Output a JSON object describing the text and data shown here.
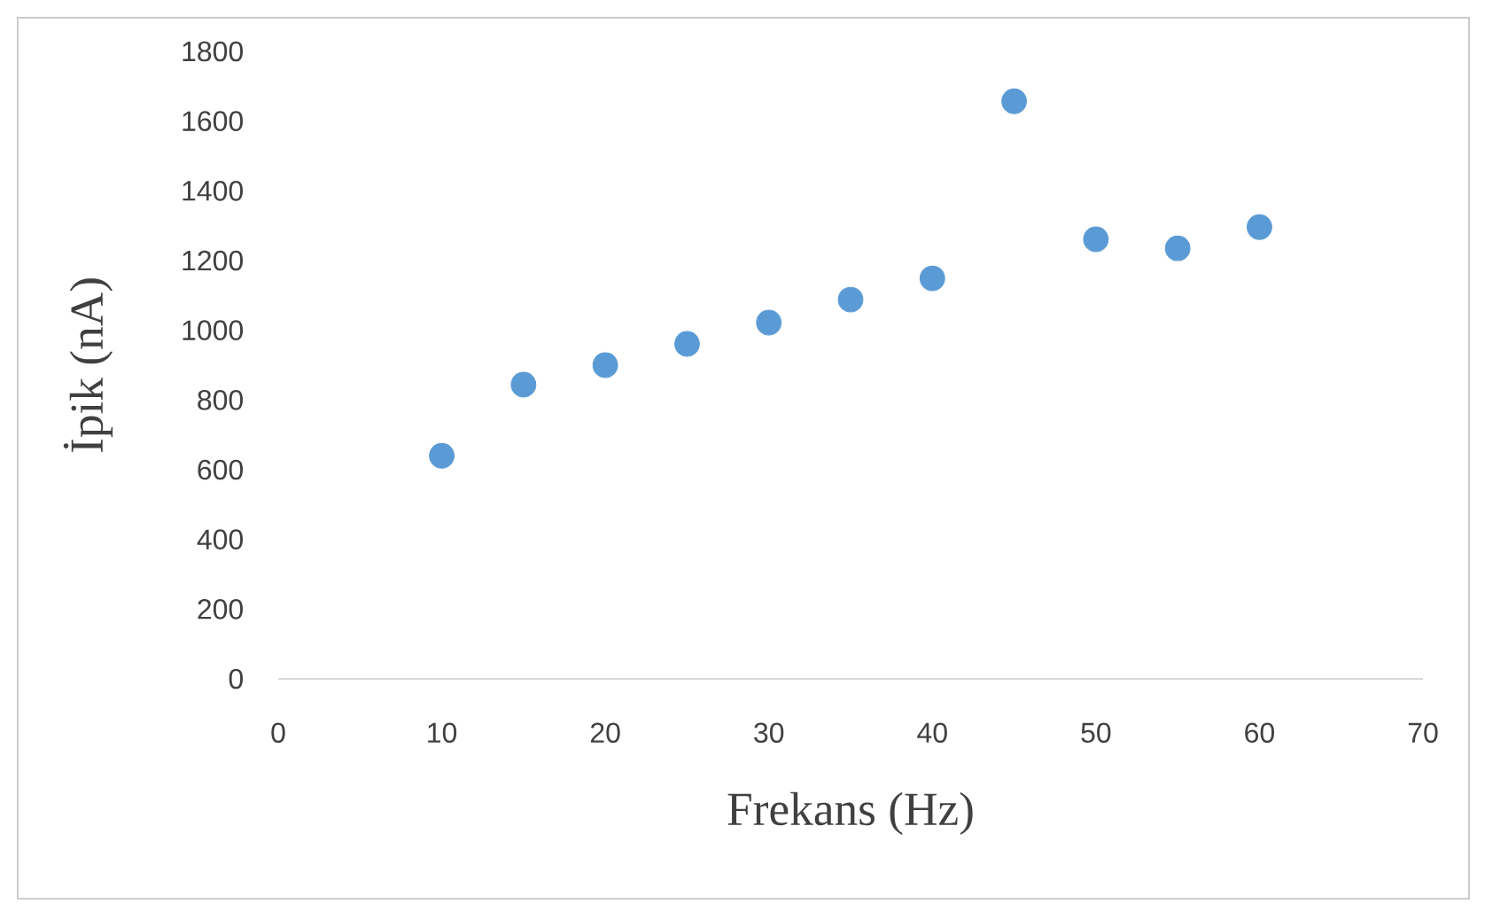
{
  "chart_data": {
    "type": "scatter",
    "xlabel": "Frekans (Hz)",
    "ylabel": "İpik (nA)",
    "x": [
      10,
      15,
      20,
      25,
      30,
      35,
      40,
      45,
      50,
      55,
      60
    ],
    "values": [
      640,
      844,
      900,
      961,
      1022,
      1088,
      1149,
      1657,
      1261,
      1235,
      1296
    ],
    "color": "#5b9bd5",
    "marker": "circle",
    "xlim": [
      0,
      70
    ],
    "xticks": [
      0,
      10,
      20,
      30,
      40,
      50,
      60,
      70
    ],
    "ylim": [
      0,
      1800
    ],
    "yticks": [
      0,
      200,
      400,
      600,
      800,
      1000,
      1200,
      1400,
      1600,
      1800
    ]
  }
}
